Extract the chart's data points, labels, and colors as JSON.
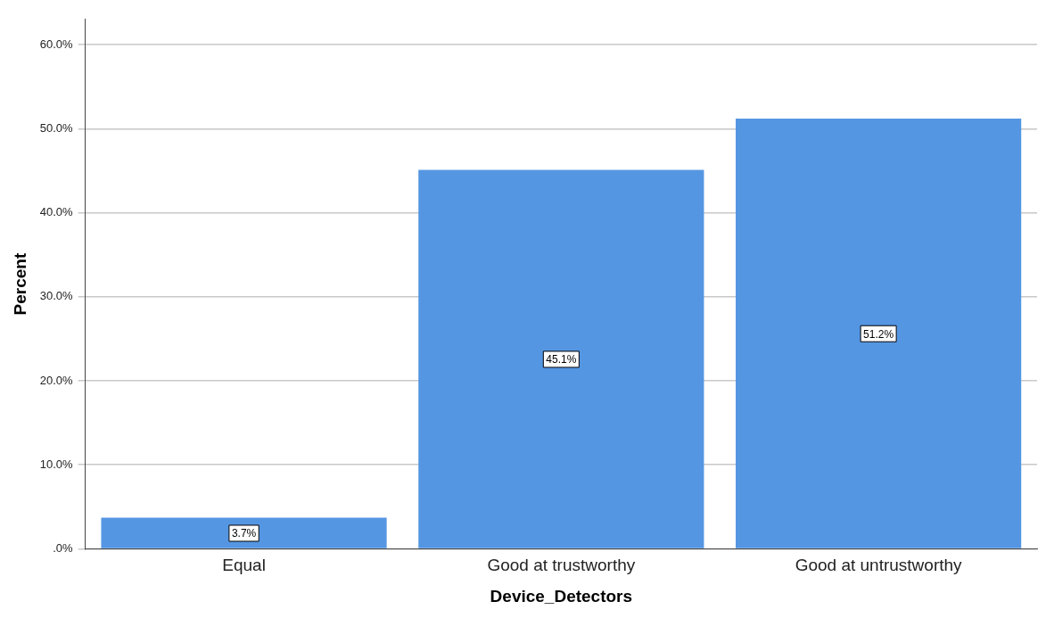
{
  "chart_data": {
    "type": "bar",
    "xlabel": "Device_Detectors",
    "ylabel": "Percent",
    "categories": [
      "Equal",
      "Good at trustworthy",
      "Good at untrustworthy"
    ],
    "values": [
      3.7,
      45.1,
      51.2
    ],
    "value_labels": [
      "3.7%",
      "45.1%",
      "51.2%"
    ],
    "color": "#5596e3",
    "ylim": [
      0,
      63
    ],
    "yticks": [
      {
        "value": 0,
        "label": ".0%"
      },
      {
        "value": 10,
        "label": "10.0%"
      },
      {
        "value": 20,
        "label": "20.0%"
      },
      {
        "value": 30,
        "label": "30.0%"
      },
      {
        "value": 40,
        "label": "40.0%"
      },
      {
        "value": 50,
        "label": "50.0%"
      },
      {
        "value": 60,
        "label": "60.0%"
      }
    ],
    "grid": "y"
  }
}
